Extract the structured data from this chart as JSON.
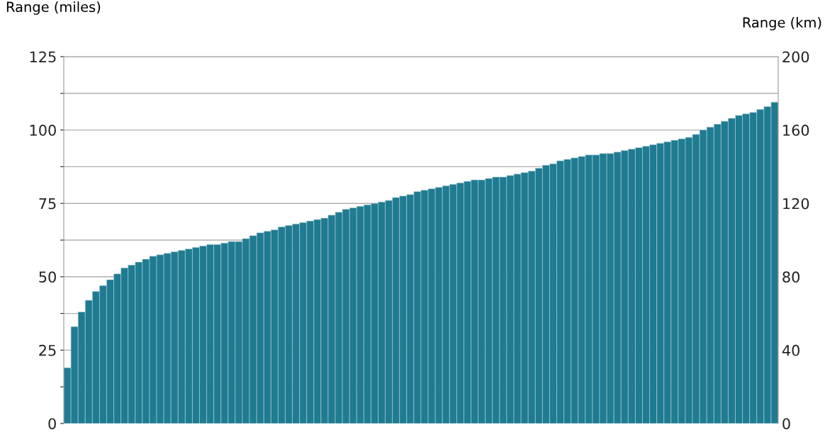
{
  "chart_data": {
    "type": "bar",
    "ylabel": "Range (miles)",
    "y2label": "Range (km)",
    "categories": [
      null,
      null,
      null,
      null,
      null,
      null,
      null,
      null,
      null,
      null,
      null,
      null,
      null,
      null,
      null,
      null,
      null,
      null,
      null,
      null,
      null,
      null,
      null,
      null,
      null,
      null,
      null,
      null,
      null,
      null,
      null,
      null,
      null,
      null,
      null,
      null,
      null,
      null,
      null,
      null,
      null,
      null,
      null,
      null,
      null,
      null,
      null,
      null,
      null,
      null,
      null,
      null,
      null,
      null,
      null,
      null,
      null,
      null,
      null,
      null,
      null,
      null,
      null,
      null,
      null,
      null,
      null,
      null,
      null,
      null,
      null,
      null,
      null,
      null,
      null,
      null,
      null,
      null,
      null,
      null,
      null,
      null,
      null,
      null,
      null,
      null,
      null,
      null,
      null,
      null,
      null,
      null,
      null,
      null,
      null,
      null,
      null,
      null,
      null,
      null
    ],
    "values": [
      19,
      33,
      38,
      42,
      45,
      47,
      49,
      51,
      53,
      54,
      55,
      56,
      57,
      57.5,
      58,
      58.5,
      59,
      59.5,
      60,
      60.5,
      61,
      61,
      61.5,
      62,
      62,
      63,
      64,
      65,
      65.5,
      66,
      67,
      67.5,
      68,
      68.5,
      69,
      69.5,
      70,
      71,
      72,
      73,
      73.5,
      74,
      74.5,
      75,
      75.5,
      76,
      77,
      77.5,
      78,
      79,
      79.5,
      80,
      80.5,
      81,
      81.5,
      82,
      82.5,
      83,
      83,
      83.5,
      84,
      84,
      84.5,
      85,
      85.5,
      86,
      87,
      88,
      88.5,
      89.5,
      90,
      90.5,
      91,
      91.5,
      91.5,
      92,
      92,
      92.5,
      93,
      93.5,
      94,
      94.5,
      95,
      95.5,
      96,
      96.5,
      97,
      97.5,
      98.5,
      100,
      101,
      102,
      103,
      104,
      105,
      105.5,
      106,
      107,
      108,
      109.5
    ],
    "color": "#1f7b91",
    "ylim": [
      0,
      125
    ],
    "yticks": [
      0,
      {
        "value": 12.5,
        "label": null
      },
      25,
      {
        "value": 37.5,
        "label": null
      },
      50,
      {
        "value": 62.5,
        "label": null
      },
      75,
      {
        "value": 87.5,
        "label": null
      },
      100,
      {
        "value": 112.5,
        "label": null
      },
      125
    ],
    "y2lim": [
      0,
      200
    ],
    "y2ticks": [
      0,
      40,
      80,
      120,
      160,
      200
    ],
    "grid": "y",
    "tick_labels": "y"
  }
}
